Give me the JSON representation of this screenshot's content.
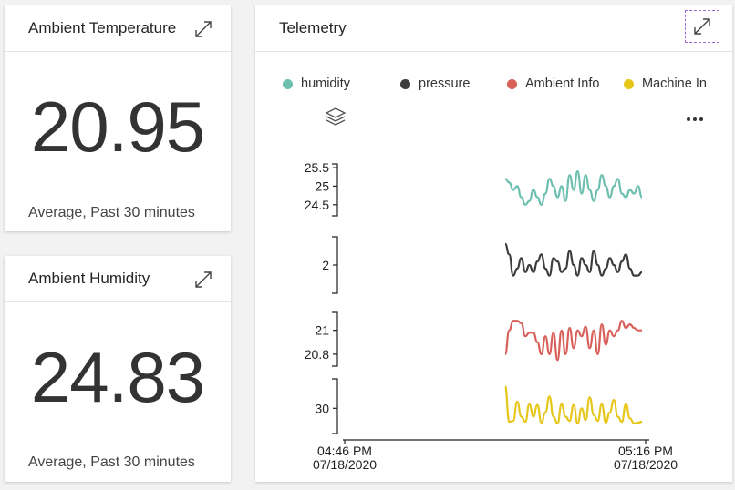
{
  "tiles": {
    "temperature": {
      "title": "Ambient Temperature",
      "value": "20.95",
      "subtitle": "Average, Past 30 minutes"
    },
    "humidity": {
      "title": "Ambient Humidity",
      "value": "24.83",
      "subtitle": "Average, Past 30 minutes"
    }
  },
  "telemetry": {
    "title": "Telemetry",
    "icons": [
      "expand-icon",
      "layers-icon",
      "more-icon"
    ]
  },
  "chart_data": {
    "type": "line",
    "x_axis": {
      "ticks": [
        {
          "time": "04:46 PM",
          "date": "07/18/2020"
        },
        {
          "time": "05:16 PM",
          "date": "07/18/2020"
        }
      ]
    },
    "series": [
      {
        "name": "humidity",
        "color": "#6dbfb0",
        "yticks": [
          "25.5",
          "25",
          "24.5"
        ],
        "ylim": [
          24.2,
          25.6
        ],
        "values": [
          25.2,
          25.1,
          24.9,
          25.0,
          24.7,
          24.5,
          24.6,
          24.9,
          24.7,
          24.5,
          24.8,
          25.2,
          25.0,
          24.7,
          25.0,
          24.6,
          25.3,
          24.9,
          25.4,
          24.8,
          25.3,
          24.9,
          24.6,
          24.9,
          25.3,
          25.0,
          24.7,
          25.0,
          25.2,
          24.8,
          24.7,
          24.9,
          24.8,
          25.0,
          24.7
        ]
      },
      {
        "name": "pressure",
        "color": "#3c3c3c",
        "yticks": [
          "2"
        ],
        "ylim": [
          1.2,
          2.8
        ],
        "values": [
          2.6,
          2.3,
          1.7,
          1.9,
          2.2,
          1.8,
          2.0,
          1.8,
          2.1,
          2.3,
          1.9,
          1.7,
          2.2,
          2.1,
          1.8,
          1.9,
          2.4,
          2.0,
          1.7,
          2.2,
          2.0,
          1.8,
          2.4,
          2.0,
          1.7,
          1.9,
          2.2,
          2.0,
          1.8,
          2.1,
          2.3,
          1.9,
          1.7,
          1.7,
          1.8
        ]
      },
      {
        "name": "Ambient Info",
        "color": "#d9605a",
        "yticks": [
          "21",
          "20.8"
        ],
        "ylim": [
          20.7,
          21.15
        ],
        "values": [
          20.8,
          21.0,
          21.08,
          21.08,
          21.06,
          20.95,
          20.98,
          20.98,
          20.9,
          20.8,
          20.95,
          20.8,
          20.98,
          20.75,
          21.0,
          20.8,
          21.02,
          20.85,
          21.0,
          20.95,
          21.03,
          20.85,
          21.0,
          20.8,
          21.05,
          20.88,
          21.0,
          20.95,
          21.0,
          21.08,
          21.02,
          21.05,
          21.02,
          21.0,
          21.0
        ]
      },
      {
        "name": "Machine In",
        "color": "#e6c619",
        "yticks": [
          "30"
        ],
        "ylim": [
          27.0,
          33.5
        ],
        "values": [
          32.6,
          28.4,
          28.5,
          30.8,
          29.0,
          28.4,
          30.5,
          29.0,
          30.4,
          28.3,
          29.5,
          31.4,
          29.0,
          28.2,
          30.5,
          29.0,
          28.5,
          30.4,
          28.2,
          30.0,
          28.6,
          31.3,
          29.2,
          28.5,
          30.5,
          28.3,
          29.5,
          31.0,
          29.0,
          28.4,
          30.5,
          28.8,
          28.2,
          28.3,
          28.4
        ]
      }
    ]
  }
}
